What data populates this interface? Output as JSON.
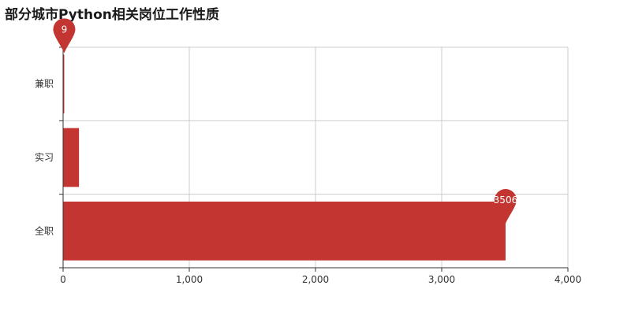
{
  "chart_data": {
    "type": "bar",
    "orientation": "horizontal",
    "title": "部分城市Python相关岗位工作性质",
    "categories": [
      "全职",
      "实习",
      "兼职"
    ],
    "values": [
      3506,
      126,
      9
    ],
    "xlim": [
      0,
      4000
    ],
    "x_ticks": [
      0,
      1000,
      2000,
      3000,
      4000
    ],
    "x_tick_labels": [
      "0",
      "1,000",
      "2,000",
      "3,000",
      "4,000"
    ],
    "grid": true,
    "bar_color": "#c23531",
    "markpoints": [
      {
        "category": "兼职",
        "value": 9,
        "label": "9"
      },
      {
        "category": "全职",
        "value": 3506,
        "label": "3506"
      }
    ]
  }
}
